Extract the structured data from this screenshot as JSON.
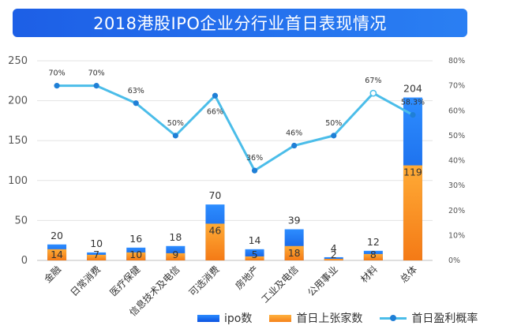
{
  "title": "2018港股IPO企业分行业首日表现情况",
  "legend": {
    "ipo": "ipo数",
    "rise": "首日上张家数",
    "rate": "首日盈利概率"
  },
  "colors": {
    "ipo": "#1565f0",
    "rise": "#f7911e",
    "rate": "#4bbde9",
    "rate_marker": "#1f7fd6"
  },
  "chart_data": {
    "type": "bar",
    "categories": [
      "金融",
      "日常消费",
      "医疗保健",
      "信息技术及电信",
      "可选消费",
      "房地产",
      "工业及电信",
      "公用事业",
      "材料",
      "总体"
    ],
    "series": [
      {
        "name": "ipo数",
        "type": "bar",
        "values": [
          20,
          10,
          16,
          18,
          70,
          14,
          39,
          4,
          12,
          204
        ]
      },
      {
        "name": "首日上张家数",
        "type": "bar",
        "values": [
          14,
          7,
          10,
          9,
          46,
          5,
          18,
          2,
          8,
          119
        ]
      },
      {
        "name": "首日盈利概率",
        "type": "line",
        "values": [
          0.7,
          0.7,
          0.63,
          0.5,
          0.66,
          0.36,
          0.46,
          0.5,
          0.67,
          0.583
        ]
      }
    ],
    "rate_labels": [
      "70%",
      "70%",
      "63%",
      "50%",
      "66%",
      "36%",
      "46%",
      "50%",
      "67%",
      "58.3%"
    ],
    "ylim": [
      0,
      250
    ],
    "yticks": [
      "0",
      "50",
      "100",
      "150",
      "200",
      "250"
    ],
    "y2lim": [
      0,
      0.8
    ],
    "y2ticks": [
      "0%",
      "10%",
      "20%",
      "30%",
      "40%",
      "50%",
      "60%",
      "70%",
      "80%"
    ],
    "grid": true,
    "legend_position": "bottom"
  }
}
